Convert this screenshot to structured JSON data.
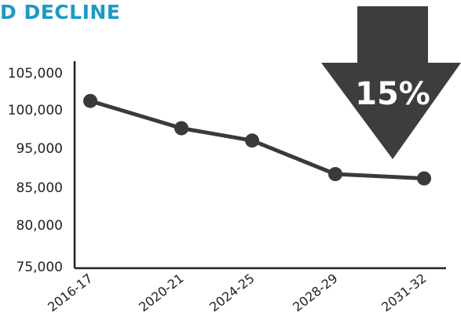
{
  "title": "D DECLINE",
  "annotation": {
    "text": "15%",
    "color": "#3d3d3d"
  },
  "colors": {
    "title": "#1a9ac9",
    "series": "#3a3a3a",
    "axis": "#222222"
  },
  "chart_data": {
    "type": "line",
    "title": "D DECLINE",
    "xlabel": "",
    "ylabel": "",
    "categories": [
      "2016-17",
      "2020-21",
      "2024-25",
      "2028-29",
      "2031-32"
    ],
    "y_ticks": [
      "75,000",
      "80,000",
      "85,000",
      "95,000",
      "100,000",
      "105,000"
    ],
    "series": [
      {
        "values": [
          101200,
          97600,
          96000,
          88400,
          87300
        ]
      }
    ],
    "grid": false,
    "legend": "none"
  }
}
